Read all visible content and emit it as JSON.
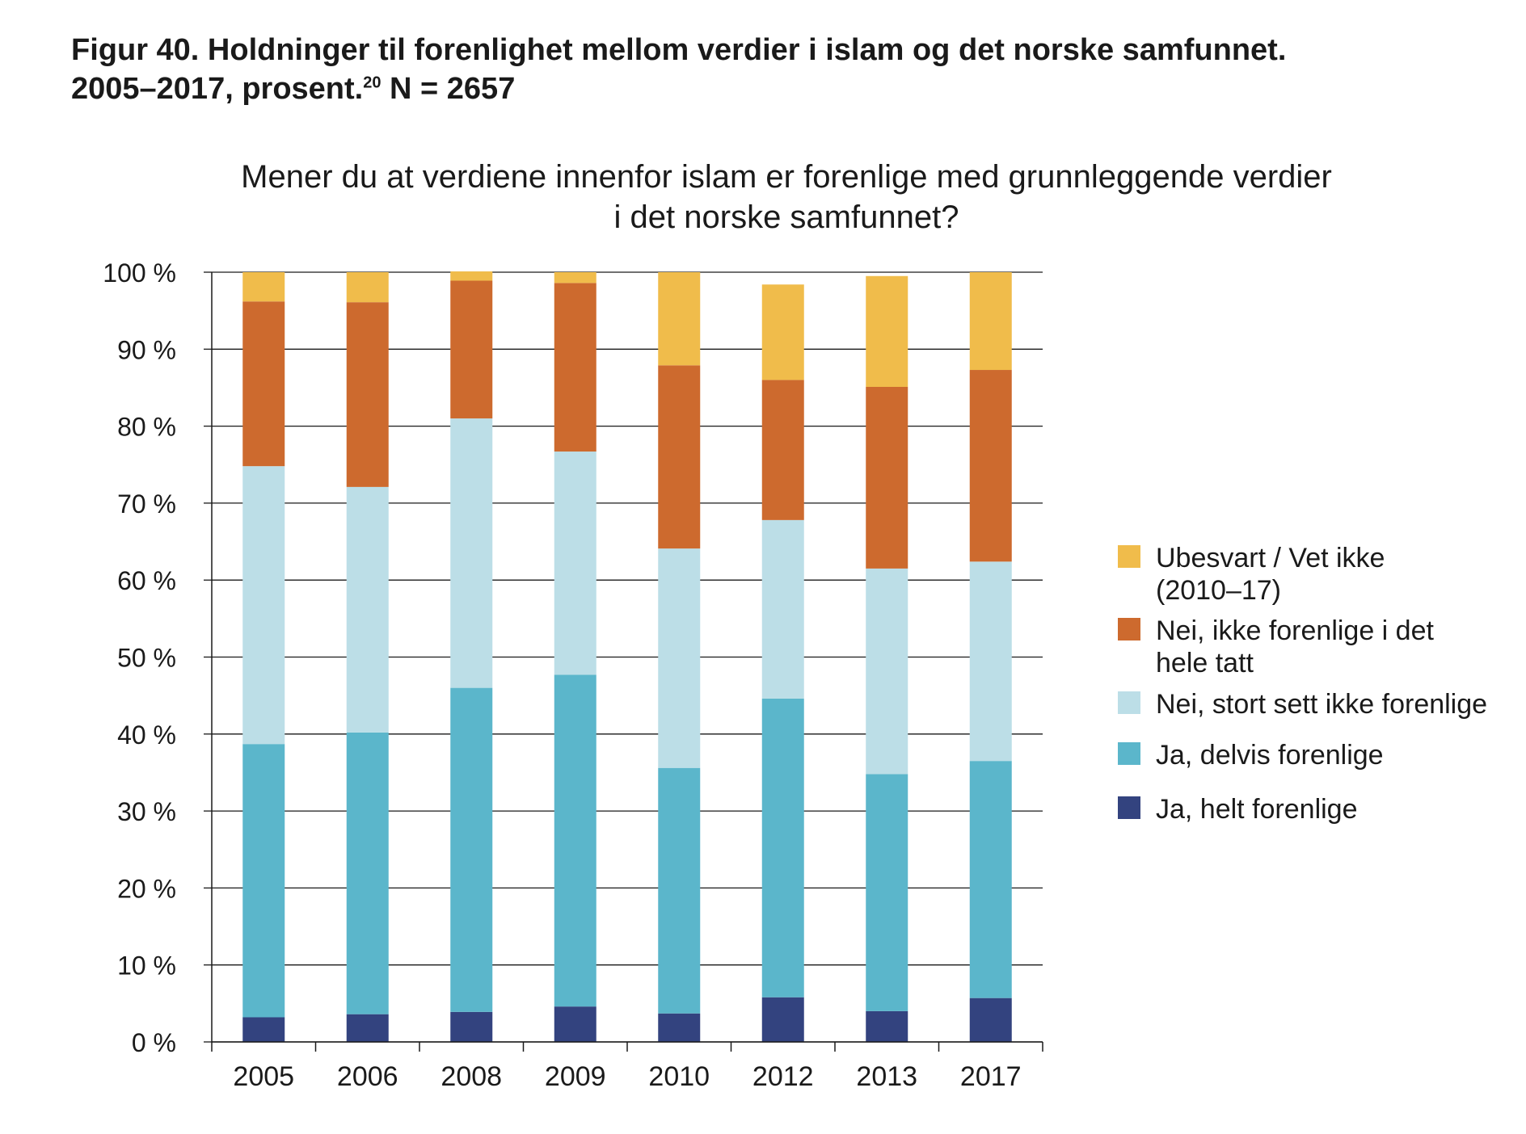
{
  "figure": {
    "title_line1": "Figur 40. Holdninger til forenlighet mellom verdier i islam og det norske samfunnet.",
    "title_line2_prefix": "2005–2017, prosent.",
    "footnote_ref": "20",
    "title_line2_suffix": " N = 2657"
  },
  "chart_data": {
    "type": "bar",
    "stacked": true,
    "title": "Mener du at verdiene innenfor islam er forenlige med grunnleggende verdier i det norske samfunnet?",
    "title_lines": [
      "Mener du at verdiene innenfor islam er forenlige med grunnleggende verdier",
      "i det norske samfunnet?"
    ],
    "xlabel": "",
    "ylabel": "",
    "ylim": [
      0,
      100
    ],
    "yticks": [
      "0 %",
      "10 %",
      "20 %",
      "30 %",
      "40 %",
      "50 %",
      "60 %",
      "70 %",
      "80 %",
      "90 %",
      "100 %"
    ],
    "categories": [
      "2005",
      "2006",
      "2008",
      "2009",
      "2010",
      "2012",
      "2013",
      "2017"
    ],
    "grid": true,
    "legend_position": "right",
    "series": [
      {
        "name": "Ja, helt forenlige",
        "color": "#33437f",
        "values": [
          3.2,
          3.6,
          3.9,
          4.6,
          3.7,
          5.8,
          4.0,
          5.7
        ]
      },
      {
        "name": "Ja, delvis forenlige",
        "color": "#5bb6cb",
        "values": [
          35.5,
          36.6,
          42.1,
          43.1,
          31.9,
          38.8,
          30.8,
          30.8
        ]
      },
      {
        "name": "Nei, stort sett ikke forenlige",
        "color": "#bcdee7",
        "values": [
          36.1,
          31.9,
          35.0,
          29.0,
          28.5,
          23.2,
          26.7,
          25.9
        ]
      },
      {
        "name": "Nei, ikke forenlige i det hele tatt",
        "color": "#cd6a2e",
        "values": [
          21.4,
          24.0,
          17.9,
          21.9,
          23.8,
          18.2,
          23.6,
          24.9
        ]
      },
      {
        "name": "Ubesvart / Vet ikke (2010–17)",
        "color": "#f0bc4b",
        "values": [
          3.8,
          3.9,
          1.2,
          1.4,
          12.1,
          12.4,
          14.4,
          12.7
        ]
      }
    ],
    "legend": [
      {
        "lines": [
          "Ubesvart / Vet ikke",
          "(2010–17)"
        ],
        "color": "#f0bc4b"
      },
      {
        "lines": [
          "Nei, ikke forenlige i det",
          "hele tatt"
        ],
        "color": "#cd6a2e"
      },
      {
        "lines": [
          "Nei, stort sett ikke forenlige"
        ],
        "color": "#bcdee7"
      },
      {
        "lines": [
          "Ja, delvis forenlige"
        ],
        "color": "#5bb6cb"
      },
      {
        "lines": [
          "Ja, helt forenlige"
        ],
        "color": "#33437f"
      }
    ]
  }
}
